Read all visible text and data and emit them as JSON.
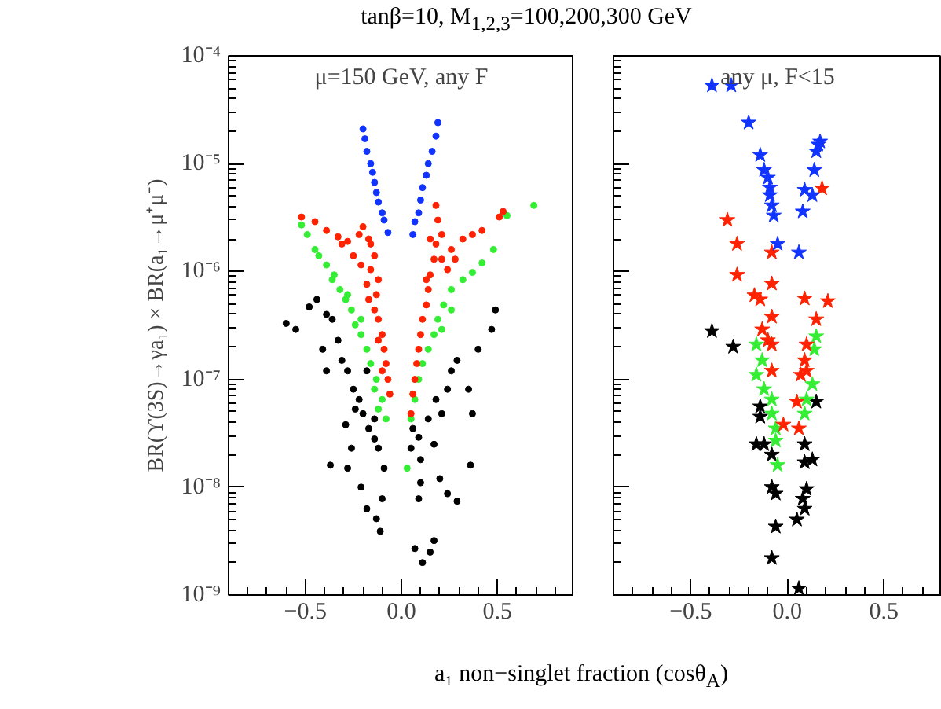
{
  "chart_data": [
    {
      "type": "scatter",
      "title": "tanβ=10, M$_{1,2,3}$=100,200,300 GeV",
      "xlabel": "a₁ non−singlet fraction (cosθ$_{A}$)",
      "ylabel": "BR(ϒ(3S)→γa₁) × BR(a₁→μ⁺μ⁻)",
      "annotations": [
        "μ=150 GeV, any F"
      ],
      "log": "y",
      "marker": "circle",
      "xlim": [
        -0.9,
        0.9
      ],
      "ylim": [
        1e-09,
        0.0001
      ],
      "xticks": [
        {
          "value": -0.5,
          "label": "−0.5"
        },
        {
          "value": 0,
          "label": "0.0"
        },
        {
          "value": 0.5,
          "label": "0.5"
        }
      ],
      "yticks": [
        {
          "value": 1e-09,
          "label": "10⁻⁹"
        },
        {
          "value": 1e-08,
          "label": "10⁻⁸"
        },
        {
          "value": 1e-07,
          "label": "10⁻⁷"
        },
        {
          "value": 1e-06,
          "label": "10⁻⁶"
        },
        {
          "value": 1e-05,
          "label": "10⁻⁵"
        },
        {
          "value": 0.0001,
          "label": "10⁻⁴"
        }
      ],
      "series": [
        {
          "color": "#000000",
          "x": [
            -0.6,
            -0.55,
            -0.48,
            -0.44,
            -0.41,
            -0.39,
            -0.36,
            -0.33,
            -0.31,
            -0.28,
            -0.39,
            -0.25,
            -0.22,
            -0.2,
            -0.29,
            -0.17,
            -0.14,
            -0.12,
            -0.37,
            -0.28,
            -0.21,
            -0.18,
            -0.13,
            -0.11,
            -0.09,
            -0.1,
            -0.24,
            -0.18,
            -0.26,
            -0.14,
            0.05,
            0.06,
            0.09,
            0.1,
            0.14,
            0.18,
            0.24,
            0.29,
            0.35,
            0.37,
            0.4,
            0.47,
            0.49,
            0.36,
            0.2,
            0.24,
            0.29,
            0.09,
            0.1,
            0.07,
            0.11,
            0.15,
            0.17,
            0.26,
            0.17,
            0.21
          ],
          "values": [
            3.3e-07,
            2.9e-07,
            4.7e-07,
            5.5e-07,
            1.9e-07,
            4e-07,
            3.6e-07,
            2.3e-07,
            1.5e-07,
            1.2e-07,
            1.2e-07,
            8.1e-08,
            6.5e-08,
            4.8e-08,
            3.8e-08,
            3.5e-08,
            2.8e-08,
            2.3e-08,
            1.6e-08,
            1.5e-08,
            1e-08,
            6.3e-09,
            5.1e-09,
            3.9e-09,
            1.5e-08,
            7.8e-09,
            5.3e-08,
            1.2e-07,
            2.3e-08,
            4.3e-08,
            2.3e-08,
            3.5e-08,
            2.9e-08,
            1.8e-08,
            4.3e-08,
            6.5e-08,
            8.1e-08,
            1.5e-07,
            8.1e-08,
            4.8e-08,
            1.9e-07,
            2.9e-07,
            4.4e-07,
            1.6e-08,
            1.2e-08,
            8.7e-09,
            7.4e-09,
            7.8e-09,
            1.1e-08,
            2.7e-09,
            2e-09,
            2.5e-09,
            3.2e-09,
            1.2e-07,
            2.5e-08,
            4.8e-08
          ]
        },
        {
          "color": "#33ee33",
          "x": [
            -0.52,
            -0.49,
            -0.45,
            -0.43,
            -0.39,
            -0.35,
            -0.32,
            -0.29,
            -0.26,
            -0.24,
            -0.21,
            -0.18,
            -0.16,
            -0.13,
            -0.1,
            -0.08,
            -0.36,
            -0.28,
            -0.21,
            -0.14,
            -0.12,
            0.03,
            0.05,
            0.07,
            0.09,
            0.11,
            0.14,
            0.17,
            0.19,
            0.22,
            0.26,
            0.32,
            0.37,
            0.42,
            0.48,
            0.55,
            0.69,
            0.26,
            0.21
          ],
          "values": [
            2.7e-06,
            2.2e-06,
            1.6e-06,
            1.4e-06,
            1.15e-06,
            9.3e-07,
            6.8e-07,
            5.5e-07,
            4.4e-07,
            3.2e-07,
            2.6e-07,
            1.9e-07,
            1.4e-07,
            1e-07,
            6.5e-08,
            4.3e-08,
            8.4e-07,
            6.1e-07,
            3.6e-07,
            8.1e-08,
            5.3e-08,
            1.5e-08,
            4.3e-08,
            6.5e-08,
            1e-07,
            1.4e-07,
            1.9e-07,
            2.6e-07,
            3.6e-07,
            4.9e-07,
            6.8e-07,
            8.4e-07,
            9.8e-07,
            1.2e-06,
            1.6e-06,
            3.3e-06,
            4.1e-06,
            4.4e-07,
            2.9e-07
          ]
        },
        {
          "color": "#ff2200",
          "x": [
            -0.52,
            -0.45,
            -0.39,
            -0.33,
            -0.28,
            -0.22,
            -0.2,
            -0.17,
            -0.25,
            -0.21,
            -0.16,
            -0.18,
            -0.13,
            -0.14,
            -0.12,
            -0.1,
            -0.09,
            -0.08,
            -0.07,
            -0.06,
            -0.31,
            -0.14,
            -0.12,
            -0.17,
            -0.12,
            -0.1,
            -0.16,
            0.05,
            0.06,
            0.07,
            0.08,
            0.09,
            0.1,
            0.11,
            0.13,
            0.14,
            0.15,
            0.17,
            0.18,
            0.18,
            0.21,
            0.26,
            0.32,
            0.37,
            0.42,
            0.53,
            0.51,
            0.24,
            0.28,
            0.13,
            0.21,
            0.15,
            0.19
          ],
          "values": [
            3.2e-06,
            2.9e-06,
            2.4e-06,
            2.1e-06,
            1.9e-06,
            2.2e-06,
            2.6e-06,
            2e-06,
            1.4e-06,
            1.15e-06,
            1.04e-06,
            7.6e-07,
            6.1e-07,
            4.4e-07,
            3.6e-07,
            2.6e-07,
            1.9e-07,
            1.4e-07,
            1e-07,
            7.3e-08,
            1.8e-06,
            1.4e-06,
            8.4e-07,
            5.5e-07,
            2.3e-07,
            1.2e-07,
            1.8e-06,
            4.8e-08,
            7.3e-08,
            1e-07,
            1.4e-07,
            1.9e-07,
            2.6e-07,
            3.6e-07,
            4.9e-07,
            6.8e-07,
            9.3e-07,
            1.3e-06,
            1.8e-06,
            4.1e-06,
            2.2e-06,
            1.6e-06,
            2e-06,
            2.2e-06,
            2.4e-06,
            3.6e-06,
            3.2e-06,
            1.04e-06,
            1.3e-06,
            8.4e-07,
            1.3e-06,
            2e-06,
            3e-06
          ]
        },
        {
          "color": "#1133ff",
          "x": [
            -0.2,
            -0.19,
            -0.18,
            -0.16,
            -0.15,
            -0.14,
            -0.13,
            -0.12,
            -0.1,
            -0.09,
            -0.07,
            0.19,
            0.18,
            0.16,
            0.14,
            0.13,
            0.11,
            0.1,
            0.09,
            0.07,
            0.06
          ],
          "values": [
            2.1e-05,
            1.7e-05,
            1.3e-05,
            1e-05,
            8.3e-06,
            6.7e-06,
            5.4e-06,
            4.4e-06,
            3.5e-06,
            3e-06,
            2.3e-06,
            2.4e-05,
            1.8e-05,
            1.3e-05,
            1e-05,
            7.8e-06,
            6e-06,
            4.6e-06,
            3.5e-06,
            2.9e-06,
            2.2e-06
          ]
        }
      ]
    },
    {
      "type": "scatter",
      "annotations": [
        "any μ, F<15"
      ],
      "log": "y",
      "marker": "star",
      "tick_labels": "x",
      "xlim": [
        -0.9,
        0.8
      ],
      "ylim": [
        1e-09,
        0.0001
      ],
      "xticks": [
        {
          "value": -0.5,
          "label": "−0.5"
        },
        {
          "value": 0,
          "label": "0.0"
        },
        {
          "value": 0.5,
          "label": "0.5"
        }
      ],
      "yticks": [
        1e-09,
        1e-08,
        1e-07,
        1e-06,
        1e-05,
        0.0001
      ],
      "series": [
        {
          "color": "#000000",
          "x": [
            -0.39,
            -0.28,
            -0.14,
            -0.14,
            -0.16,
            -0.12,
            -0.08,
            0.09,
            0.09,
            0.13,
            -0.08,
            -0.06,
            0.1,
            0.08,
            0.09,
            0.05,
            -0.06,
            -0.08,
            0.06,
            0.15
          ],
          "values": [
            2.8e-07,
            2e-07,
            5.6e-08,
            4.5e-08,
            2.5e-08,
            2.5e-08,
            2e-08,
            2.5e-08,
            1.7e-08,
            1.8e-08,
            1e-08,
            8.7e-09,
            9.6e-09,
            7.8e-09,
            6.3e-09,
            5e-09,
            4.3e-09,
            2.2e-09,
            1.15e-09,
            6.2e-08
          ]
        },
        {
          "color": "#33ee33",
          "x": [
            -0.16,
            -0.13,
            -0.16,
            -0.12,
            -0.08,
            -0.08,
            -0.06,
            -0.06,
            -0.05,
            0.14,
            0.15,
            0.13,
            0.1,
            0.09
          ],
          "values": [
            2.1e-07,
            1.5e-07,
            1.1e-07,
            8.1e-08,
            6.5e-08,
            4.8e-08,
            3.5e-08,
            2.7e-08,
            1.6e-08,
            1.9e-07,
            2.5e-07,
            9e-08,
            6.5e-08,
            4.8e-08
          ]
        },
        {
          "color": "#ff2200",
          "x": [
            -0.31,
            -0.26,
            -0.26,
            -0.08,
            -0.08,
            -0.17,
            -0.14,
            -0.08,
            -0.13,
            -0.1,
            -0.08,
            0.09,
            0.21,
            0.15,
            0.1,
            0.09,
            0.07,
            0.1,
            -0.08,
            -0.02,
            0.05,
            0.06,
            0.18
          ],
          "values": [
            3e-06,
            1.8e-06,
            9.3e-07,
            1.5e-06,
            7.7e-07,
            6e-07,
            5.5e-07,
            3.8e-07,
            2.9e-07,
            2.3e-07,
            2.1e-07,
            5.6e-07,
            5.3e-07,
            3.6e-07,
            2.1e-07,
            1.5e-07,
            1.1e-07,
            1.2e-07,
            1.2e-07,
            3.8e-08,
            6.2e-08,
            3.5e-08,
            5.9e-06
          ]
        },
        {
          "color": "#1133ff",
          "x": [
            -0.39,
            -0.29,
            -0.2,
            -0.14,
            -0.12,
            -0.1,
            -0.09,
            -0.09,
            -0.08,
            -0.07,
            -0.05,
            0.06,
            0.08,
            0.09,
            0.13,
            0.14,
            0.15,
            0.16,
            0.17
          ],
          "values": [
            5.3e-05,
            5.3e-05,
            2.4e-05,
            1.2e-05,
            8.7e-06,
            7.4e-06,
            6e-06,
            5.1e-06,
            4.1e-06,
            3.3e-06,
            1.8e-06,
            1.5e-06,
            3.6e-06,
            5.7e-06,
            5.1e-06,
            8.7e-06,
            1.3e-05,
            1.5e-05,
            1.6e-05
          ]
        }
      ]
    }
  ]
}
